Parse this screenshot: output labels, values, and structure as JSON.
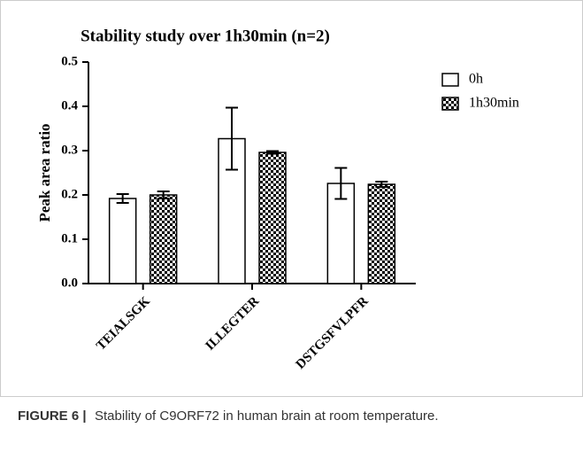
{
  "chart_data": {
    "type": "bar",
    "title": "Stability study over 1h30min (n=2)",
    "ylabel": "Peak area ratio",
    "categories": [
      "TEIALSGK",
      "ILLEGTER",
      "DSTGSFVLPFR"
    ],
    "series": [
      {
        "name": "0h",
        "color": "#ffffff",
        "values": [
          0.192,
          0.327,
          0.226
        ],
        "errors": [
          0.01,
          0.07,
          0.035
        ]
      },
      {
        "name": "1h30min",
        "color": "#000000",
        "pattern": "checker",
        "values": [
          0.2,
          0.296,
          0.224
        ],
        "errors": [
          0.008,
          0.003,
          0.006
        ]
      }
    ],
    "ylim": [
      0,
      0.5
    ],
    "yticks": [
      {
        "value": 0,
        "label": "0.0"
      },
      0.1,
      0.2,
      0.3,
      0.4,
      0.5
    ],
    "legend": "upper right"
  },
  "caption": {
    "label": "FIGURE 6 |",
    "text": "Stability of C9ORF72 in human brain at room temperature."
  }
}
